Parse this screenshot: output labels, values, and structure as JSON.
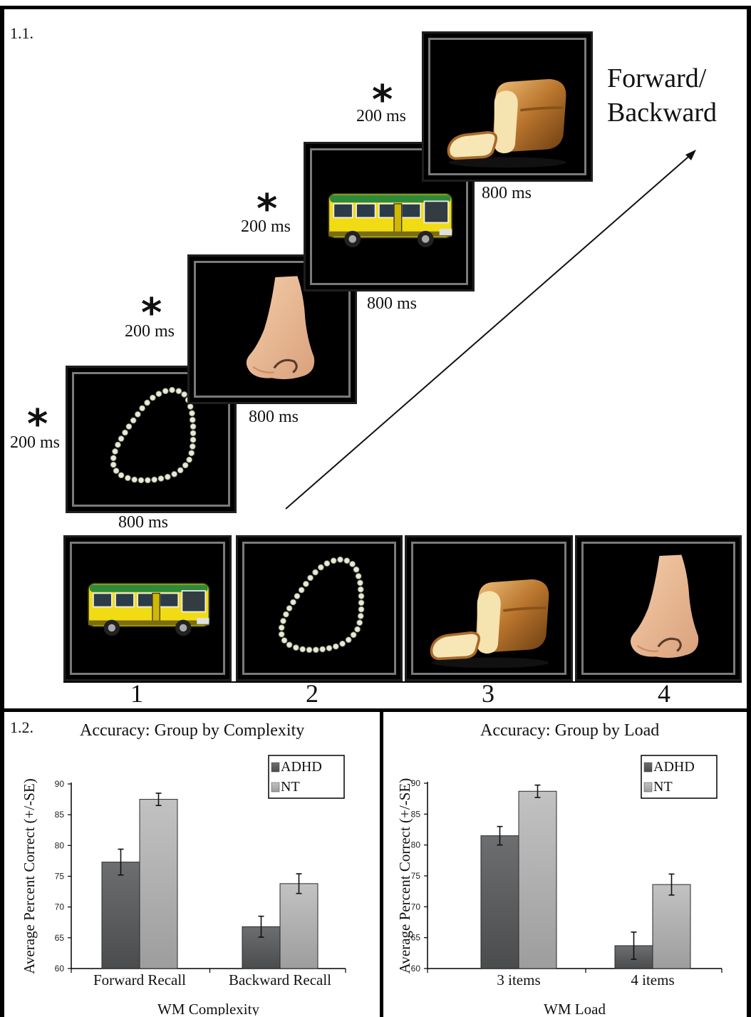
{
  "panel_a": {
    "label": "1.1.",
    "direction_label_line1": "Forward/",
    "direction_label_line2": "Backward",
    "fixation_symbol": "*",
    "sequence": [
      {
        "item": "necklace-icon",
        "fixation": "200 ms",
        "stimulus": "800 ms"
      },
      {
        "item": "nose-icon",
        "fixation": "200 ms",
        "stimulus": "800 ms"
      },
      {
        "item": "bus-icon",
        "fixation": "200 ms",
        "stimulus": "800 ms"
      },
      {
        "item": "bread-icon",
        "fixation": "200 ms",
        "stimulus": "800 ms"
      }
    ],
    "response_options": [
      {
        "number": "1",
        "item": "bus-icon"
      },
      {
        "number": "2",
        "item": "necklace-icon"
      },
      {
        "number": "3",
        "item": "bread-icon"
      },
      {
        "number": "4",
        "item": "nose-icon"
      }
    ]
  },
  "panel_b": {
    "label": "1.2."
  },
  "colors": {
    "adhd_bar": "#5f6162",
    "nt_bar": "#b1b1b1",
    "card_background": "#000000",
    "card_border": "#7a7a7a"
  },
  "chart_data": [
    {
      "type": "bar",
      "title": "Accuracy: Group by Complexity",
      "xlabel": "WM Complexity",
      "ylabel": "Average Percent Correct (+/-SE)",
      "categories": [
        "Forward Recall",
        "Backward Recall"
      ],
      "series": [
        {
          "name": "ADHD",
          "values": [
            77.3,
            66.8
          ],
          "se": [
            2.1,
            1.7
          ]
        },
        {
          "name": "NT",
          "values": [
            87.5,
            73.8
          ],
          "se": [
            1.0,
            1.6
          ]
        }
      ],
      "ylim": [
        60,
        90
      ],
      "yticks": [
        60,
        65,
        70,
        75,
        80,
        85,
        90
      ],
      "legend": "top-right",
      "grid": false
    },
    {
      "type": "bar",
      "title": "Accuracy: Group by Load",
      "xlabel": "WM Load",
      "ylabel": "Average Percent Correct (+/-SE)",
      "categories": [
        "3 items",
        "4 items"
      ],
      "series": [
        {
          "name": "ADHD",
          "values": [
            81.5,
            63.7
          ],
          "se": [
            1.5,
            2.2
          ]
        },
        {
          "name": "NT",
          "values": [
            88.7,
            73.6
          ],
          "se": [
            1.0,
            1.7
          ]
        }
      ],
      "ylim": [
        60,
        90
      ],
      "yticks": [
        60,
        65,
        70,
        75,
        80,
        85,
        90
      ],
      "legend": "top-right",
      "grid": false
    }
  ]
}
